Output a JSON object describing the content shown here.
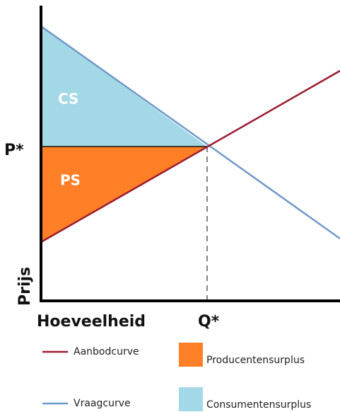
{
  "diagram": {
    "areas": {
      "cs": "CS",
      "ps": "PS"
    },
    "axes": {
      "price_marker": "P*",
      "quantity_marker": "Q*",
      "y_label": "Prijs",
      "x_label": "Hoeveelheid"
    },
    "legend": [
      {
        "label": "Aanbodcurve",
        "color": "#9b1b30"
      },
      {
        "label": "Producentensurplus",
        "color": "#ff7f27"
      },
      {
        "label": "Vraagcurve",
        "color": "#7099c8"
      },
      {
        "label": "Consumentensurplus",
        "color": "#a3d8e6"
      }
    ]
  }
}
